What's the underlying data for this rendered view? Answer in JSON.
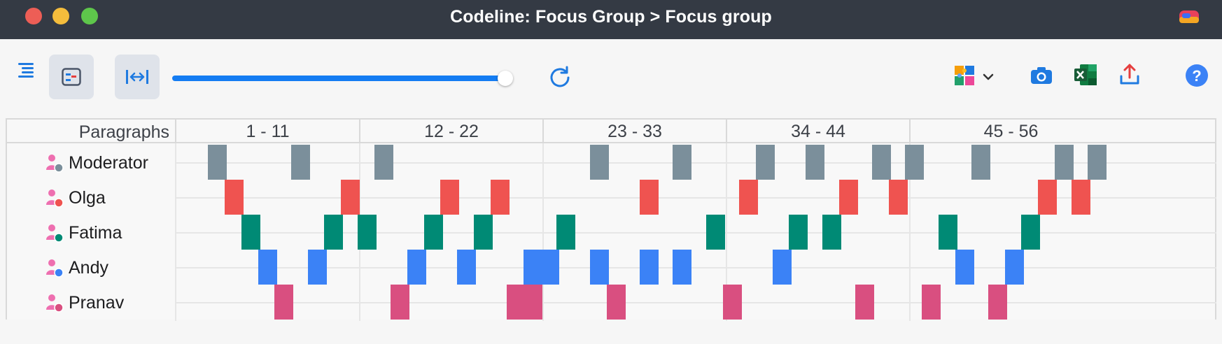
{
  "window": {
    "title": "Codeline: Focus Group > Focus group"
  },
  "toolbar": {
    "buttons": [
      {
        "name": "outline-icon"
      },
      {
        "name": "codeline-view-icon"
      },
      {
        "name": "fit-width-icon"
      },
      {
        "name": "refresh-icon"
      },
      {
        "name": "codes-icon"
      },
      {
        "name": "chevron-down-icon"
      },
      {
        "name": "camera-icon"
      },
      {
        "name": "excel-icon"
      },
      {
        "name": "export-icon"
      },
      {
        "name": "help-icon"
      }
    ],
    "zoom_level": 1.0
  },
  "grid": {
    "paragraphs_label": "Paragraphs",
    "sections": [
      "1 - 11",
      "12 - 22",
      "23 - 33",
      "34 - 44",
      "45 - 56"
    ],
    "paragraph_count": 56
  },
  "speakers": [
    {
      "name": "Moderator",
      "color": "#7b8f9b",
      "paragraphs": [
        3,
        8,
        13,
        26,
        31,
        36,
        39,
        43,
        45,
        49,
        54,
        56
      ]
    },
    {
      "name": "Olga",
      "color": "#ef5350",
      "paragraphs": [
        4,
        11,
        17,
        20,
        29,
        35,
        41,
        44,
        53,
        55
      ]
    },
    {
      "name": "Fatima",
      "color": "#008a75",
      "paragraphs": [
        5,
        10,
        12,
        16,
        19,
        24,
        33,
        38,
        40,
        47,
        52
      ]
    },
    {
      "name": "Andy",
      "color": "#3b82f6",
      "paragraphs": [
        6,
        9,
        15,
        18,
        22,
        23,
        26,
        29,
        31,
        37,
        48,
        51
      ]
    },
    {
      "name": "Pranav",
      "color": "#d94f80",
      "paragraphs": [
        7,
        14,
        21,
        22,
        27,
        34,
        42,
        46,
        50
      ]
    }
  ]
}
